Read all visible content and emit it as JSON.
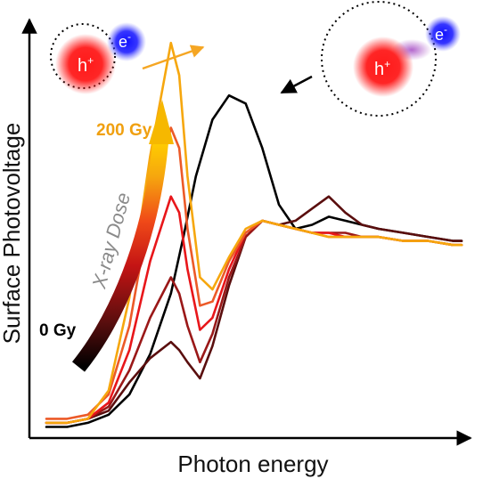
{
  "chart_data": {
    "type": "line",
    "title": "",
    "xlabel": "Photon energy",
    "ylabel": "Surface Photovoltage",
    "xlim": [
      0,
      100
    ],
    "ylim": [
      0,
      100
    ],
    "grid": false,
    "legend": "none",
    "series": [
      {
        "color": "#000000",
        "x": [
          0,
          5,
          10,
          15,
          20,
          25,
          30,
          33,
          36,
          40,
          44,
          48,
          52,
          56,
          60,
          64,
          68,
          72,
          76,
          80,
          86,
          92,
          98,
          100
        ],
        "values": [
          1,
          1,
          2,
          4,
          9,
          19,
          34,
          48,
          63,
          77,
          83,
          81,
          70,
          56,
          50,
          51,
          53,
          52,
          51,
          50,
          49,
          48,
          47,
          47
        ]
      },
      {
        "color": "#5a0e0e",
        "x": [
          0,
          5,
          10,
          15,
          20,
          25,
          30,
          32,
          34,
          37,
          40,
          44,
          48,
          52,
          56,
          60,
          64,
          68,
          72,
          76,
          80,
          86,
          92,
          98,
          100
        ],
        "values": [
          2,
          2,
          3,
          5,
          12,
          18,
          22,
          20,
          17,
          13,
          21,
          36,
          48,
          52,
          51,
          52,
          55,
          58,
          54,
          51,
          50,
          49,
          48,
          47,
          47
        ]
      },
      {
        "color": "#9a1818",
        "x": [
          0,
          5,
          10,
          15,
          20,
          25,
          30,
          32,
          34,
          37,
          40,
          44,
          48,
          52,
          56,
          60,
          64,
          68,
          72,
          76,
          80,
          86,
          92,
          98,
          100
        ],
        "values": [
          2,
          2,
          3,
          6,
          15,
          28,
          38,
          34,
          26,
          17,
          24,
          38,
          48,
          52,
          51,
          50,
          49,
          49,
          49,
          48,
          48,
          47,
          47,
          46,
          46
        ]
      },
      {
        "color": "#e8161a",
        "x": [
          0,
          5,
          10,
          15,
          20,
          25,
          30,
          32,
          34,
          37,
          40,
          44,
          48,
          52,
          56,
          60,
          64,
          68,
          72,
          76,
          80,
          86,
          92,
          98,
          100
        ],
        "values": [
          2,
          2,
          3,
          7,
          20,
          42,
          58,
          54,
          40,
          25,
          28,
          40,
          49,
          52,
          51,
          50,
          49,
          49,
          48,
          48,
          48,
          47,
          47,
          46,
          46
        ]
      },
      {
        "color": "#ec5a28",
        "x": [
          0,
          5,
          10,
          15,
          20,
          25,
          30,
          32,
          34,
          37,
          40,
          44,
          48,
          52,
          56,
          60,
          64,
          68,
          72,
          76,
          80,
          86,
          92,
          98,
          100
        ],
        "values": [
          3,
          3,
          4,
          9,
          26,
          55,
          75,
          70,
          50,
          31,
          32,
          42,
          49,
          52,
          51,
          50,
          49,
          48,
          48,
          48,
          48,
          47,
          47,
          46,
          46
        ]
      },
      {
        "color": "#f6a70e",
        "x": [
          0,
          5,
          10,
          15,
          20,
          25,
          30,
          32,
          34,
          37,
          40,
          44,
          48,
          52,
          56,
          60,
          64,
          68,
          72,
          76,
          80,
          86,
          92,
          98,
          100
        ],
        "values": [
          2,
          2,
          3,
          10,
          33,
          68,
          96,
          88,
          63,
          38,
          35,
          43,
          50,
          52,
          51,
          50,
          49,
          48,
          48,
          48,
          48,
          47,
          47,
          46,
          46
        ]
      }
    ],
    "annotations": {
      "dose_high": "200 Gy",
      "dose_low": "0 Gy",
      "dose_axis": "X-ray Dose",
      "hole": "h",
      "hole_sup": "+",
      "electron": "e",
      "electron_sup": "-"
    }
  },
  "colors": {
    "dose_gradient": [
      "#000000",
      "#5a0e0e",
      "#c41414",
      "#f04a18",
      "#f6a70e",
      "#ffcc00"
    ],
    "dose_high_label": "#f0a010",
    "dose_low_label": "#000000",
    "hole": "#ff1a1a",
    "electron": "#2020ff"
  }
}
